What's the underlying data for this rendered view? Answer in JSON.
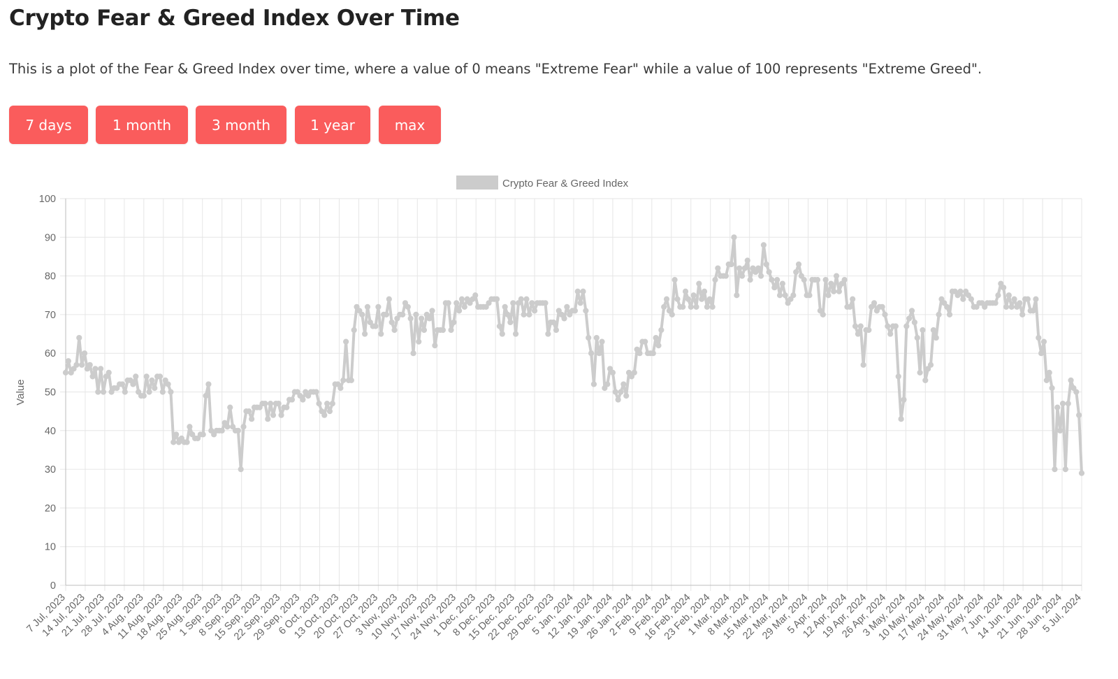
{
  "page": {
    "title": "Crypto Fear & Greed Index Over Time",
    "description": "This is a plot of the Fear & Greed Index over time, where a value of 0 means \"Extreme Fear\" while a value of 100 represents \"Extreme Greed\"."
  },
  "range_buttons": [
    {
      "label": "7 days"
    },
    {
      "label": "1 month"
    },
    {
      "label": "3 month"
    },
    {
      "label": "1 year"
    },
    {
      "label": "max"
    }
  ],
  "colors": {
    "button": "#fa5c5c",
    "series": "#cccccc",
    "grid": "#e6e6e6",
    "axis_text": "#666666"
  },
  "chart_data": {
    "type": "line",
    "title": "",
    "xlabel": "",
    "ylabel": "Value",
    "ylim": [
      0,
      100
    ],
    "yticks": [
      0,
      10,
      20,
      30,
      40,
      50,
      60,
      70,
      80,
      90,
      100
    ],
    "grid": true,
    "legend_position": "top-center",
    "x_start": "7 Jul, 2023",
    "x_end": "5 Jul, 2024",
    "x_tick_labels": [
      "7 Jul, 2023",
      "14 Jul, 2023",
      "21 Jul, 2023",
      "28 Jul, 2023",
      "4 Aug, 2023",
      "11 Aug, 2023",
      "18 Aug, 2023",
      "25 Aug, 2023",
      "1 Sep, 2023",
      "8 Sep, 2023",
      "15 Sep, 2023",
      "22 Sep, 2023",
      "29 Sep, 2023",
      "6 Oct, 2023",
      "13 Oct, 2023",
      "20 Oct, 2023",
      "27 Oct, 2023",
      "3 Nov, 2023",
      "10 Nov, 2023",
      "17 Nov, 2023",
      "24 Nov, 2023",
      "1 Dec, 2023",
      "8 Dec, 2023",
      "15 Dec, 2023",
      "22 Dec, 2023",
      "29 Dec, 2023",
      "5 Jan, 2024",
      "12 Jan, 2024",
      "19 Jan, 2024",
      "26 Jan, 2024",
      "2 Feb, 2024",
      "9 Feb, 2024",
      "16 Feb, 2024",
      "23 Feb, 2024",
      "1 Mar, 2024",
      "8 Mar, 2024",
      "15 Mar, 2024",
      "22 Mar, 2024",
      "29 Mar, 2024",
      "5 Apr, 2024",
      "12 Apr, 2024",
      "19 Apr, 2024",
      "26 Apr, 2024",
      "3 May, 2024",
      "10 May, 2024",
      "17 May, 2024",
      "24 May, 2024",
      "31 May, 2024",
      "7 Jun, 2024",
      "14 Jun, 2024",
      "21 Jun, 2024",
      "28 Jun, 2024",
      "5 Jul, 2024"
    ],
    "series": [
      {
        "name": "Crypto Fear & Greed Index",
        "color": "#cccccc",
        "values": [
          55,
          58,
          55,
          56,
          57,
          64,
          57,
          60,
          56,
          57,
          54,
          56,
          50,
          56,
          50,
          54,
          55,
          50,
          51,
          51,
          52,
          52,
          50,
          53,
          53,
          52,
          54,
          50,
          49,
          49,
          54,
          50,
          53,
          51,
          54,
          54,
          50,
          53,
          52,
          50,
          37,
          39,
          37,
          38,
          37,
          37,
          41,
          39,
          38,
          38,
          39,
          39,
          49,
          52,
          40,
          39,
          40,
          40,
          40,
          42,
          41,
          46,
          41,
          40,
          40,
          30,
          41,
          45,
          45,
          43,
          46,
          46,
          46,
          47,
          47,
          43,
          47,
          44,
          47,
          47,
          44,
          46,
          46,
          48,
          48,
          50,
          50,
          49,
          48,
          50,
          49,
          50,
          50,
          50,
          47,
          45,
          44,
          47,
          45,
          47,
          52,
          52,
          51,
          53,
          63,
          53,
          53,
          66,
          72,
          71,
          70,
          65,
          72,
          68,
          67,
          67,
          72,
          65,
          70,
          70,
          74,
          68,
          66,
          69,
          70,
          70,
          73,
          72,
          69,
          60,
          70,
          63,
          69,
          66,
          70,
          69,
          71,
          62,
          66,
          66,
          66,
          73,
          73,
          66,
          68,
          73,
          71,
          74,
          72,
          74,
          73,
          74,
          75,
          72,
          72,
          72,
          72,
          73,
          74,
          74,
          74,
          67,
          65,
          72,
          70,
          68,
          73,
          65,
          73,
          74,
          70,
          74,
          70,
          73,
          71,
          73,
          73,
          73,
          73,
          65,
          68,
          68,
          66,
          71,
          70,
          69,
          72,
          70,
          71,
          71,
          76,
          73,
          76,
          71,
          64,
          60,
          52,
          64,
          60,
          63,
          51,
          52,
          56,
          55,
          50,
          48,
          50,
          52,
          49,
          55,
          54,
          55,
          61,
          60,
          63,
          63,
          60,
          60,
          60,
          64,
          62,
          66,
          72,
          74,
          71,
          70,
          79,
          74,
          72,
          72,
          76,
          74,
          72,
          75,
          72,
          78,
          74,
          76,
          72,
          74,
          72,
          79,
          82,
          80,
          80,
          80,
          83,
          83,
          90,
          75,
          82,
          80,
          82,
          84,
          79,
          82,
          81,
          82,
          80,
          88,
          83,
          81,
          79,
          77,
          79,
          75,
          78,
          75,
          73,
          74,
          75,
          81,
          83,
          80,
          79,
          75,
          75,
          79,
          79,
          79,
          71,
          70,
          79,
          75,
          78,
          76,
          80,
          76,
          78,
          79,
          72,
          72,
          74,
          67,
          65,
          67,
          57,
          66,
          66,
          72,
          73,
          71,
          72,
          72,
          70,
          67,
          65,
          67,
          67,
          54,
          43,
          48,
          67,
          69,
          71,
          68,
          64,
          55,
          66,
          53,
          56,
          57,
          66,
          64,
          70,
          74,
          73,
          72,
          70,
          76,
          76,
          75,
          76,
          74,
          76,
          75,
          74,
          72,
          72,
          73,
          73,
          72,
          73,
          73,
          73,
          73,
          75,
          78,
          77,
          72,
          75,
          72,
          74,
          72,
          73,
          70,
          74,
          74,
          71,
          71,
          74,
          64,
          60,
          63,
          53,
          55,
          51,
          30,
          46,
          40,
          47,
          30,
          47,
          53,
          51,
          50,
          44,
          29
        ]
      }
    ]
  }
}
